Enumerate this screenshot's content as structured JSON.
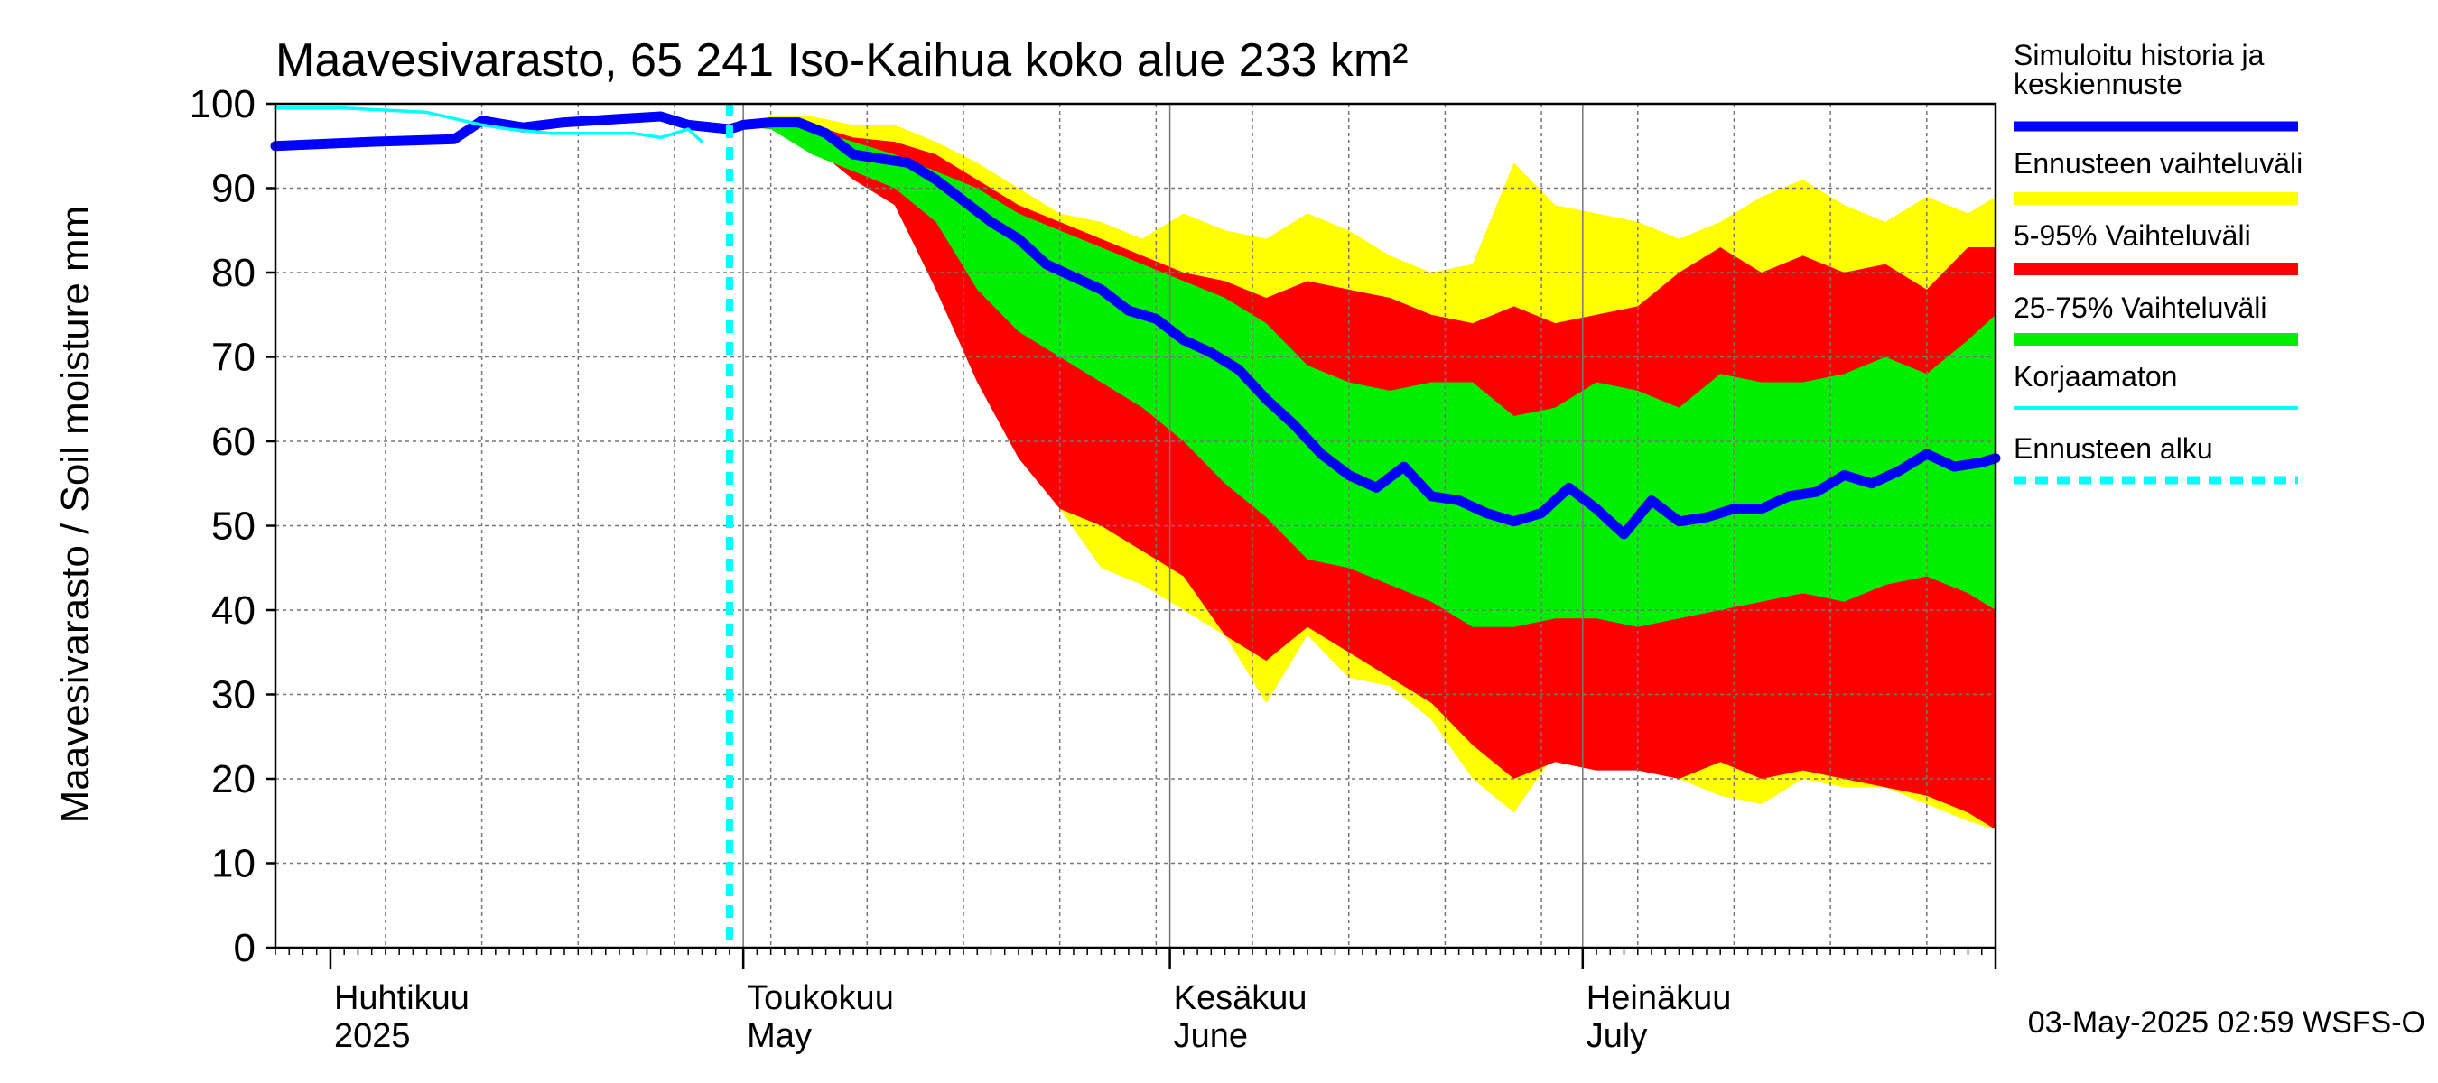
{
  "chart_data": {
    "type": "area",
    "title": "Maavesivarasto, 65 241 Iso-Kaihua koko alue 233 km²",
    "ylabel": "Maavesivarasto / Soil moisture   mm",
    "ylim": [
      0,
      100
    ],
    "yticks": [
      0,
      10,
      20,
      30,
      40,
      50,
      60,
      70,
      80,
      90,
      100
    ],
    "xlim": [
      "2025-03-28",
      "2025-07-31"
    ],
    "month_labels": [
      {
        "date": "2025-04-01",
        "line1": "Huhtikuu",
        "line2": "2025"
      },
      {
        "date": "2025-05-01",
        "line1": "Toukokuu",
        "line2": "May"
      },
      {
        "date": "2025-06-01",
        "line1": "Kesäkuu",
        "line2": "June"
      },
      {
        "date": "2025-07-01",
        "line1": "Heinäkuu",
        "line2": "July"
      }
    ],
    "forecast_start": "2025-04-30",
    "grid": true,
    "legend_position": "right",
    "legend": [
      {
        "label": "Simuloitu historia ja keskiennuste",
        "lines": [
          "Simuloitu historia ja",
          "keskiennuste"
        ],
        "color": "#0000ff",
        "style": "thick"
      },
      {
        "label": "Ennusteen vaihteluväli",
        "lines": [
          "Ennusteen vaihteluväli"
        ],
        "color": "#ffff00",
        "style": "band"
      },
      {
        "label": "5-95% Vaihteluväli",
        "lines": [
          "5-95% Vaihteluväli"
        ],
        "color": "#ff0000",
        "style": "band"
      },
      {
        "label": "25-75% Vaihteluväli",
        "lines": [
          "25-75% Vaihteluväli"
        ],
        "color": "#00ee00",
        "style": "band"
      },
      {
        "label": "Korjaamaton",
        "lines": [
          "Korjaamaton"
        ],
        "color": "#00ffff",
        "style": "thin"
      },
      {
        "label": "Ennusteen alku",
        "lines": [
          "Ennusteen alku"
        ],
        "color": "#00ffff",
        "style": "dashed"
      }
    ],
    "timestamp": "03-May-2025 02:59 WSFS-O",
    "series": [
      {
        "name": "Simuloitu historia ja keskiennuste",
        "color": "#0000ff",
        "x": [
          "2025-03-28",
          "2025-04-04",
          "2025-04-10",
          "2025-04-12",
          "2025-04-15",
          "2025-04-18",
          "2025-04-22",
          "2025-04-25",
          "2025-04-27",
          "2025-04-30",
          "2025-05-01",
          "2025-05-03",
          "2025-05-05",
          "2025-05-07",
          "2025-05-09",
          "2025-05-11",
          "2025-05-13",
          "2025-05-15",
          "2025-05-17",
          "2025-05-19",
          "2025-05-21",
          "2025-05-23",
          "2025-05-25",
          "2025-05-27",
          "2025-05-29",
          "2025-05-31",
          "2025-06-02",
          "2025-06-04",
          "2025-06-06",
          "2025-06-08",
          "2025-06-10",
          "2025-06-12",
          "2025-06-14",
          "2025-06-16",
          "2025-06-18",
          "2025-06-20",
          "2025-06-22",
          "2025-06-24",
          "2025-06-26",
          "2025-06-28",
          "2025-06-30",
          "2025-07-02",
          "2025-07-04",
          "2025-07-06",
          "2025-07-08",
          "2025-07-10",
          "2025-07-12",
          "2025-07-14",
          "2025-07-16",
          "2025-07-18",
          "2025-07-20",
          "2025-07-22",
          "2025-07-24",
          "2025-07-26",
          "2025-07-28",
          "2025-07-30",
          "2025-07-31"
        ],
        "y": [
          95,
          95.5,
          95.8,
          98,
          97.2,
          97.8,
          98.2,
          98.5,
          97.5,
          97,
          97.5,
          97.8,
          97.8,
          96.5,
          94,
          93.5,
          93,
          91,
          88.5,
          86,
          84,
          81,
          79.5,
          78,
          75.5,
          74.5,
          72,
          70.5,
          68.5,
          65,
          62,
          58.5,
          56,
          54.5,
          57,
          53.5,
          53,
          51.5,
          50.5,
          51.5,
          54.5,
          52,
          49,
          53,
          50.5,
          51,
          52,
          52,
          53.5,
          54,
          56,
          55,
          56.5,
          58.5,
          57,
          57.5,
          58
        ]
      },
      {
        "name": "Korjaamaton",
        "color": "#00ffff",
        "x": [
          "2025-03-28",
          "2025-04-02",
          "2025-04-08",
          "2025-04-12",
          "2025-04-14",
          "2025-04-17",
          "2025-04-20",
          "2025-04-23",
          "2025-04-25",
          "2025-04-27",
          "2025-04-28"
        ],
        "y": [
          99.5,
          99.5,
          99,
          97.5,
          97,
          96.5,
          96.5,
          96.5,
          96,
          97,
          95.5
        ]
      }
    ],
    "bands": [
      {
        "name": "Ennusteen vaihteluväli",
        "color": "#ffff00",
        "x": [
          "2025-04-30",
          "2025-05-03",
          "2025-05-06",
          "2025-05-09",
          "2025-05-12",
          "2025-05-15",
          "2025-05-18",
          "2025-05-21",
          "2025-05-24",
          "2025-05-27",
          "2025-05-30",
          "2025-06-02",
          "2025-06-05",
          "2025-06-08",
          "2025-06-11",
          "2025-06-14",
          "2025-06-17",
          "2025-06-20",
          "2025-06-23",
          "2025-06-26",
          "2025-06-29",
          "2025-07-02",
          "2025-07-05",
          "2025-07-08",
          "2025-07-11",
          "2025-07-14",
          "2025-07-17",
          "2025-07-20",
          "2025-07-23",
          "2025-07-26",
          "2025-07-29",
          "2025-07-31"
        ],
        "upper": [
          97.5,
          98.5,
          98.5,
          97.5,
          97.5,
          95.5,
          93,
          90,
          87,
          86,
          84,
          87,
          85,
          84,
          87,
          85,
          82,
          80,
          81,
          93,
          88,
          87,
          86,
          84,
          86,
          89,
          91,
          88,
          86,
          89,
          87,
          89
        ],
        "lower": [
          97.5,
          97,
          96,
          94,
          89,
          83,
          74,
          61,
          52,
          45,
          43,
          40,
          37,
          29,
          37,
          32,
          31,
          27,
          20,
          16,
          23,
          22,
          21,
          20,
          18,
          17,
          20,
          19,
          19,
          17,
          15,
          14
        ]
      },
      {
        "name": "5-95% Vaihteluväli",
        "color": "#ff0000",
        "x": [
          "2025-04-30",
          "2025-05-03",
          "2025-05-06",
          "2025-05-09",
          "2025-05-12",
          "2025-05-15",
          "2025-05-18",
          "2025-05-21",
          "2025-05-24",
          "2025-05-27",
          "2025-05-30",
          "2025-06-02",
          "2025-06-05",
          "2025-06-08",
          "2025-06-11",
          "2025-06-14",
          "2025-06-17",
          "2025-06-20",
          "2025-06-23",
          "2025-06-26",
          "2025-06-29",
          "2025-07-02",
          "2025-07-05",
          "2025-07-08",
          "2025-07-11",
          "2025-07-14",
          "2025-07-17",
          "2025-07-20",
          "2025-07-23",
          "2025-07-26",
          "2025-07-29",
          "2025-07-31"
        ],
        "upper": [
          97.5,
          98,
          97.5,
          96,
          95.5,
          94,
          91,
          88,
          86,
          84,
          82,
          80,
          79,
          77,
          79,
          78,
          77,
          75,
          74,
          76,
          74,
          75,
          76,
          80,
          83,
          80,
          82,
          80,
          81,
          78,
          83,
          83
        ],
        "lower": [
          97.5,
          97,
          95,
          91,
          88,
          78,
          67,
          58,
          52,
          50,
          47,
          44,
          37,
          34,
          38,
          35,
          32,
          29,
          24,
          20,
          22,
          21,
          21,
          20,
          22,
          20,
          21,
          20,
          19,
          18,
          16,
          14
        ]
      },
      {
        "name": "25-75% Vaihteluväli",
        "color": "#00ee00",
        "x": [
          "2025-04-30",
          "2025-05-03",
          "2025-05-06",
          "2025-05-09",
          "2025-05-12",
          "2025-05-15",
          "2025-05-18",
          "2025-05-21",
          "2025-05-24",
          "2025-05-27",
          "2025-05-30",
          "2025-06-02",
          "2025-06-05",
          "2025-06-08",
          "2025-06-11",
          "2025-06-14",
          "2025-06-17",
          "2025-06-20",
          "2025-06-23",
          "2025-06-26",
          "2025-06-29",
          "2025-07-02",
          "2025-07-05",
          "2025-07-08",
          "2025-07-11",
          "2025-07-14",
          "2025-07-17",
          "2025-07-20",
          "2025-07-23",
          "2025-07-26",
          "2025-07-29",
          "2025-07-31"
        ],
        "upper": [
          97.5,
          97.5,
          97,
          95.5,
          94,
          92,
          90,
          87,
          85,
          83,
          81,
          79,
          77,
          74,
          69,
          67,
          66,
          67,
          67,
          63,
          64,
          67,
          66,
          64,
          68,
          67,
          67,
          68,
          70,
          68,
          72,
          75
        ],
        "lower": [
          97.5,
          97,
          94,
          92,
          90,
          86,
          78,
          73,
          70,
          67,
          64,
          60,
          55,
          51,
          46,
          45,
          43,
          41,
          38,
          38,
          39,
          39,
          38,
          39,
          40,
          41,
          42,
          41,
          43,
          44,
          42,
          40
        ]
      }
    ]
  }
}
